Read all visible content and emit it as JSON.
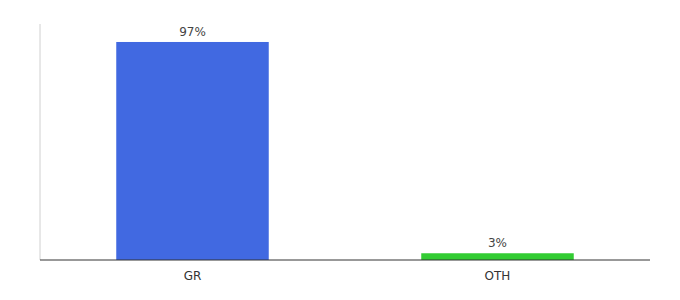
{
  "chart_data": {
    "type": "bar",
    "categories": [
      "GR",
      "OTH"
    ],
    "values": [
      97,
      3
    ],
    "value_labels": [
      "97%",
      "3%"
    ],
    "colors": [
      "#4169e1",
      "#33cc33"
    ],
    "ylim": [
      0,
      105
    ],
    "data_labels": true,
    "tick_labels": "x"
  }
}
